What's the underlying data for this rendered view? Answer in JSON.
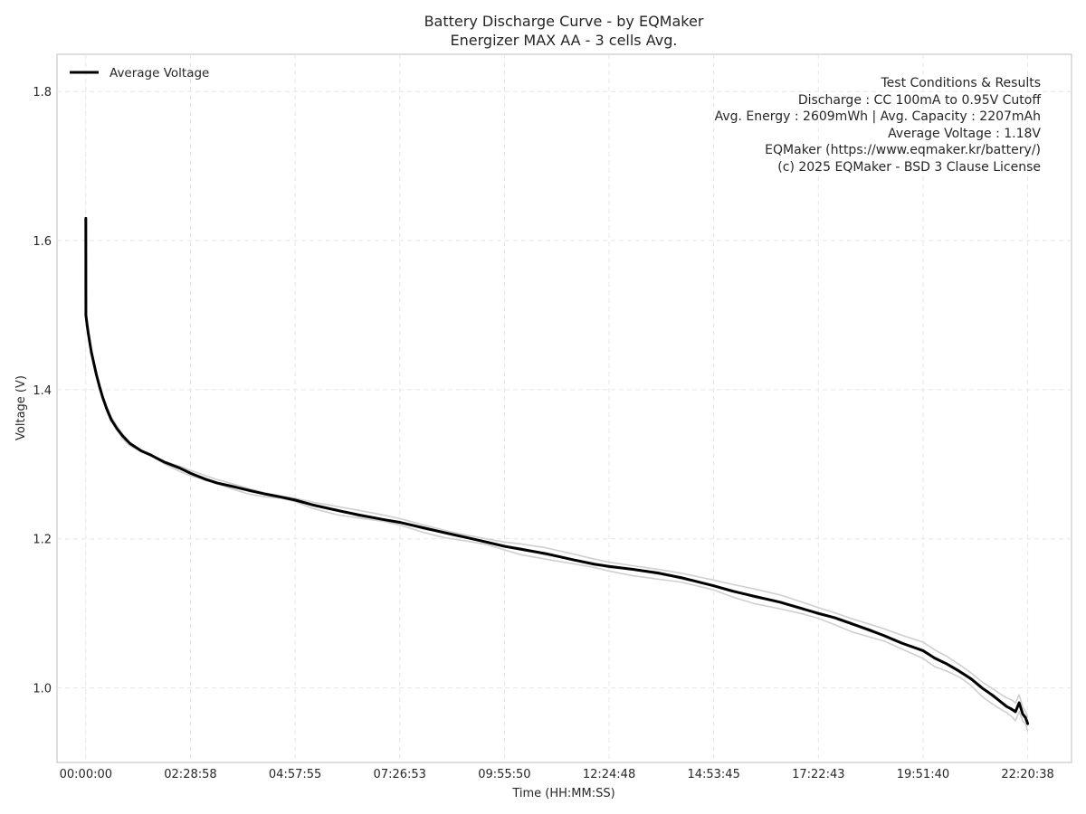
{
  "chart_data": {
    "type": "line",
    "title": [
      "Battery Discharge Curve - by EQMaker",
      "Energizer MAX AA - 3 cells Avg."
    ],
    "xlabel": "Time (HH:MM:SS)",
    "ylabel": "Voltage (V)",
    "x_unit": "HH:MM:SS",
    "xlim": [
      "-00:41:00",
      "23:23:00"
    ],
    "ylim": [
      0.9,
      1.85
    ],
    "x_ticks": [
      "00:00:00",
      "02:28:58",
      "04:57:55",
      "07:26:53",
      "09:55:50",
      "12:24:48",
      "14:53:45",
      "17:22:43",
      "19:51:40",
      "22:20:38"
    ],
    "y_ticks": [
      1.0,
      1.2,
      1.4,
      1.6,
      1.8
    ],
    "y_tick_labels": [
      "1.0",
      "1.2",
      "1.4",
      "1.6",
      "1.8"
    ],
    "grid": true,
    "legend": {
      "position": "top-left",
      "entries": [
        "Average Voltage"
      ]
    },
    "series": [
      {
        "name": "Average Voltage",
        "color": "#000000",
        "x": [
          "00:00:00",
          "00:00:06",
          "00:01:48",
          "00:03:37",
          "00:06:11",
          "00:07:59",
          "00:11:32",
          "00:15:04",
          "00:19:19",
          "00:23:56",
          "00:29:28",
          "00:36:07",
          "00:44:09",
          "00:52:29",
          "01:02:39",
          "01:18:54",
          "01:33:09",
          "01:51:35",
          "02:13:25",
          "02:28:58",
          "02:50:16",
          "03:06:31",
          "03:29:56",
          "03:52:23",
          "04:15:40",
          "04:37:43",
          "04:57:55",
          "05:25:00",
          "05:58:30",
          "06:28:43",
          "07:02:39",
          "07:26:53",
          "07:59:24",
          "08:31:41",
          "09:00:19",
          "09:28:58",
          "09:55:50",
          "10:19:21",
          "10:55:16",
          "11:33:00",
          "12:03:16",
          "12:24:48",
          "12:58:43",
          "13:34:38",
          "14:06:57",
          "14:53:45",
          "15:19:47",
          "15:51:07",
          "16:28:11",
          "17:00:35",
          "17:22:43",
          "17:46:09",
          "18:10:14",
          "18:34:22",
          "18:56:25",
          "19:21:31",
          "19:51:40",
          "20:08:10",
          "20:25:45",
          "20:43:59",
          "21:00:13",
          "21:15:31",
          "21:30:46",
          "21:43:59",
          "21:50:41",
          "21:56:56",
          "22:03:12",
          "22:08:28",
          "22:13:31",
          "22:17:36",
          "22:20:38"
        ],
        "y": [
          1.63,
          1.5,
          1.487,
          1.475,
          1.46,
          1.45,
          1.435,
          1.42,
          1.405,
          1.39,
          1.375,
          1.36,
          1.348,
          1.338,
          1.328,
          1.318,
          1.312,
          1.303,
          1.295,
          1.288,
          1.28,
          1.275,
          1.27,
          1.265,
          1.26,
          1.256,
          1.252,
          1.245,
          1.238,
          1.232,
          1.226,
          1.222,
          1.215,
          1.208,
          1.202,
          1.196,
          1.19,
          1.186,
          1.18,
          1.172,
          1.166,
          1.163,
          1.159,
          1.154,
          1.148,
          1.137,
          1.13,
          1.123,
          1.115,
          1.106,
          1.1,
          1.094,
          1.086,
          1.078,
          1.07,
          1.06,
          1.05,
          1.04,
          1.032,
          1.022,
          1.012,
          1.0,
          0.99,
          0.98,
          0.975,
          0.972,
          0.968,
          0.98,
          0.965,
          0.96,
          0.952
        ]
      }
    ],
    "background_series_color": "#cfcfcf"
  },
  "annotation": {
    "lines": [
      "Test Conditions & Results",
      "Discharge : CC 100mA to 0.95V Cutoff",
      "Avg. Energy : 2609mWh | Avg. Capacity : 2207mAh",
      "Average Voltage : 1.18V",
      "EQMaker (https://www.eqmaker.kr/battery/)",
      "(c) 2025 EQMaker - BSD 3 Clause License"
    ]
  }
}
